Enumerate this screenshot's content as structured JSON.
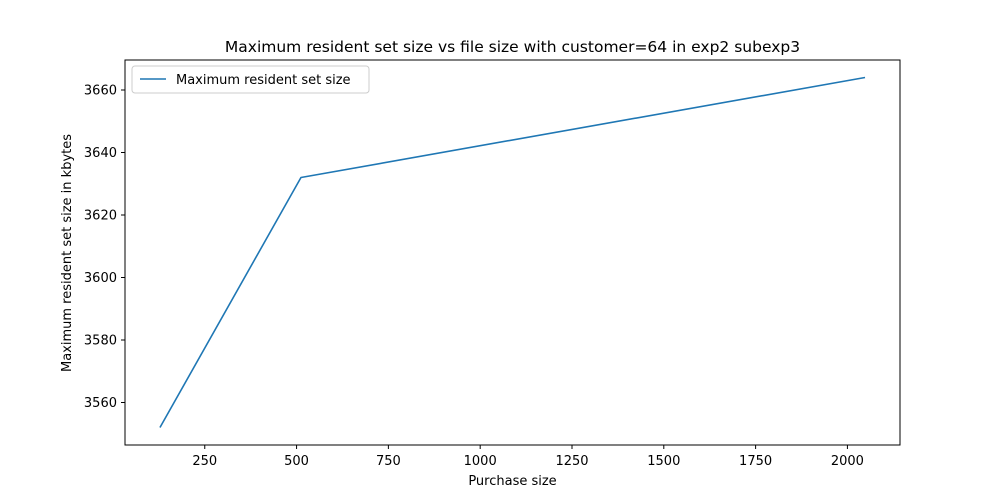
{
  "chart_data": {
    "type": "line",
    "title": "Maximum resident set size vs file size with customer=64 in exp2 subexp3",
    "xlabel": "Purchase size",
    "ylabel": "Maximum resident set size in kbytes",
    "xlim": [
      32.8,
      2143.2
    ],
    "ylim": [
      3546.4,
      3669.6
    ],
    "x_ticks": [
      250,
      500,
      750,
      1000,
      1250,
      1500,
      1750,
      2000
    ],
    "y_ticks": [
      3560,
      3580,
      3600,
      3620,
      3640,
      3660
    ],
    "x_tick_labels": [
      "250",
      "500",
      "750",
      "1000",
      "1250",
      "1500",
      "1750",
      "2000"
    ],
    "y_tick_labels": [
      "3560",
      "3580",
      "3600",
      "3620",
      "3640",
      "3660"
    ],
    "legend_position": "upper-left",
    "grid": false,
    "series": [
      {
        "name": "Maximum resident set size",
        "color": "#1f77b4",
        "x": [
          128,
          512,
          2048
        ],
        "y": [
          3552,
          3632,
          3664
        ]
      }
    ]
  }
}
